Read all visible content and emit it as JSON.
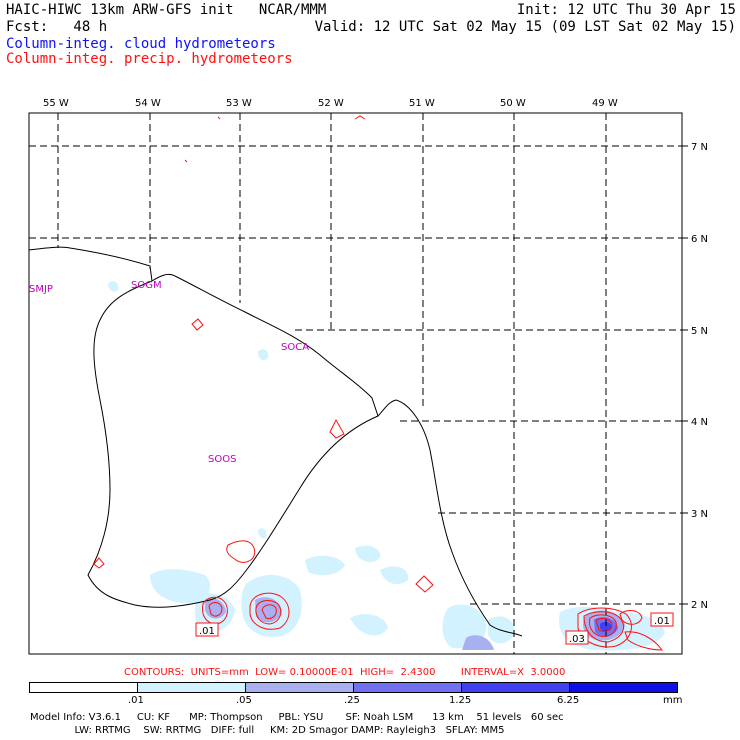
{
  "header": {
    "model_title": "HAIC-HIWC 13km ARW-GFS init   NCAR/MMM",
    "init": "Init: 12 UTC Thu 30 Apr 15",
    "fcst": "Fcst:   48 h",
    "valid": "Valid: 12 UTC Sat 02 May 15 (09 LST Sat 02 May 15)",
    "field_cloud": "Column-integ. cloud hydrometeors",
    "field_precip": "Column-integ. precip. hydrometeors"
  },
  "map": {
    "longitude_labels": [
      "55 W",
      "54 W",
      "53 W",
      "52 W",
      "51 W",
      "50 W",
      "49 W"
    ],
    "latitude_labels": [
      "7 N",
      "6 N",
      "5 N",
      "4 N",
      "3 N",
      "2 N"
    ],
    "stations": [
      "SMJP",
      "SOGM",
      "SOCA",
      "SOOS"
    ],
    "contour_labels": [
      ".01",
      ".03",
      ".01"
    ]
  },
  "contour_info": "CONTOURS:  UNITS=mm  LOW= 0.10000E-01  HIGH=  2.4300        INTERVAL=X  3.0000",
  "colorbar": {
    "labels": [
      ".01",
      ".05",
      ".25",
      "1.25",
      "6.25"
    ],
    "units": "mm",
    "colors": [
      "#ffffff",
      "#d2f2ff",
      "#a8b0f0",
      "#7070f0",
      "#4040f0",
      "#1010e8"
    ]
  },
  "footer": {
    "line1": "Model Info: V3.6.1     CU: KF      MP: Thompson     PBL: YSU       SF: Noah LSM      13 km    51 levels   60 sec",
    "line2": "              LW: RRTMG    SW: RRTMG   DIFF: full     KM: 2D Smagor DAMP: Rayleigh3   SFLAY: MM5"
  },
  "colors": {
    "cloud": "#1010ff",
    "precip": "#ff1010",
    "station": "#c000c0"
  }
}
